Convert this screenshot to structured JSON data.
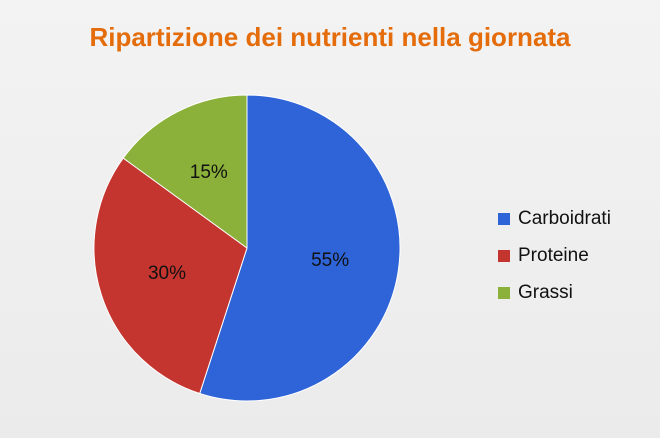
{
  "chart_data": {
    "type": "pie",
    "title": "Ripartizione dei nutrienti nella giornata",
    "categories": [
      "Carboidrati",
      "Proteine",
      "Grassi"
    ],
    "values": [
      55,
      30,
      15
    ],
    "labels": [
      "55%",
      "30%",
      "15%"
    ],
    "colors": [
      "#2e64d8",
      "#c53530",
      "#8bb13a"
    ],
    "start": "12 o'clock",
    "direction": "clockwise",
    "legend": "right"
  }
}
